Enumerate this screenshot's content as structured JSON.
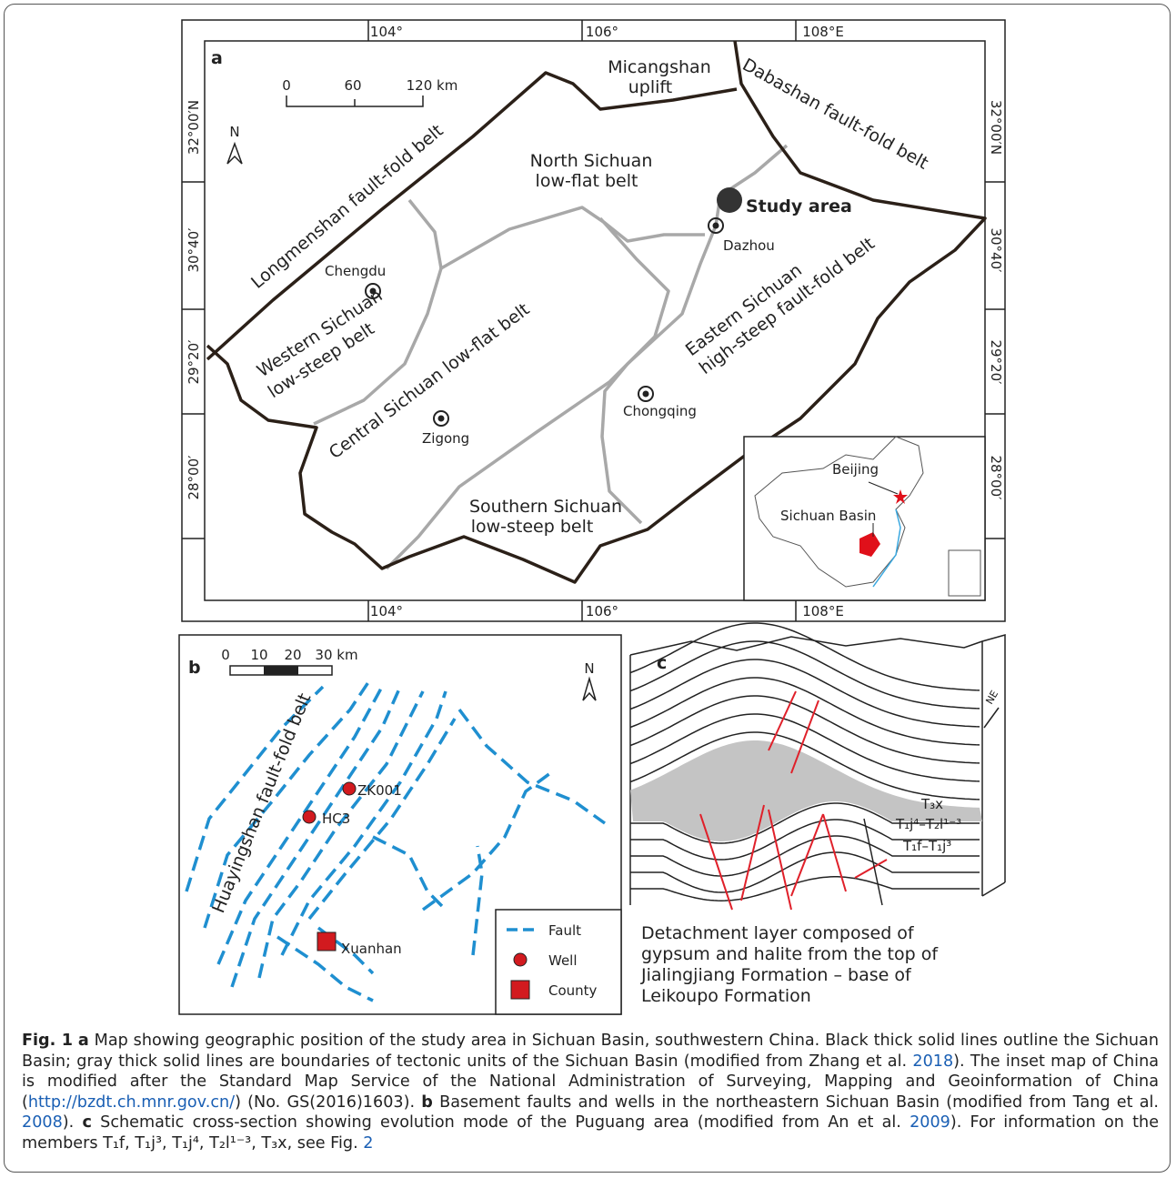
{
  "map_a": {
    "panel": "a",
    "lon_labels": [
      "104°",
      "106°",
      "108°E"
    ],
    "lat_labels": [
      "32°00′N",
      "30°40′",
      "29°20′",
      "28°00′"
    ],
    "scale": [
      "0",
      "60",
      "120 km"
    ],
    "north": "N",
    "labels": {
      "micangshan": [
        "Micangshan",
        "uplift"
      ],
      "dabashan": "Dabashan fault-fold belt",
      "longmenshan": "Longmenshan fault-fold belt",
      "north": [
        "North Sichuan",
        "low-flat belt"
      ],
      "study": "Study area",
      "dazhou": "Dazhou",
      "chengdu": "Chengdu",
      "western": [
        "Western Sichuan",
        "low-steep belt"
      ],
      "central": "Central Sichuan low-flat belt",
      "eastern": [
        "Eastern Sichuan",
        "high-steep fault-fold belt"
      ],
      "chongqing": "Chongqing",
      "zigong": "Zigong",
      "southern": [
        "Southern Sichuan",
        "low-steep belt"
      ]
    },
    "inset": {
      "beijing": "Beijing",
      "basin": "Sichuan Basin"
    }
  },
  "map_b": {
    "panel": "b",
    "scale": [
      "0",
      "10",
      "20",
      "30 km"
    ],
    "north": "N",
    "belt": "Huayingshan fault-fold belt",
    "wells": [
      "ZK001",
      "HC3"
    ],
    "county": "Xuanhan",
    "legend": [
      "Fault",
      "Well",
      "County"
    ]
  },
  "section_c": {
    "panel": "c",
    "direction": "NE",
    "layers": [
      "T₃x",
      "T₁j⁴–T₂l¹⁻³",
      "T₁f–T₁j³"
    ],
    "note": [
      "Detachment layer composed of",
      "gypsum and halite from the top of",
      "Jialingjiang Formation – base of",
      "Leikoupo Formation"
    ]
  },
  "caption": {
    "runs": [
      "Fig. 1",
      "a",
      "Map showing geographic position of the study area in Sichuan Basin, southwestern China. Black thick solid lines outline the Sichuan Basin; gray thick solid lines are boundaries of tectonic units of the Sichuan Basin (modified from Zhang et al.",
      "2018",
      "). The inset map of China is modified after the Standard Map Service of the National Administration of Surveying, Mapping and Geoinformation of China (",
      "http://bzdt.ch.mnr.gov.cn/",
      ") (No. GS(2016)1603).",
      "b",
      "Basement faults and wells in the northeastern Sichuan Basin (modified from Tang et al.",
      "2008",
      ").",
      "c",
      "Schematic cross-section showing evolution mode of the Puguang area (modified from An et al.",
      "2009",
      "). For information on the members T₁f, T₁j³, T₁j⁴, T₂l¹⁻³, T₃x, see Fig.",
      "2"
    ]
  }
}
